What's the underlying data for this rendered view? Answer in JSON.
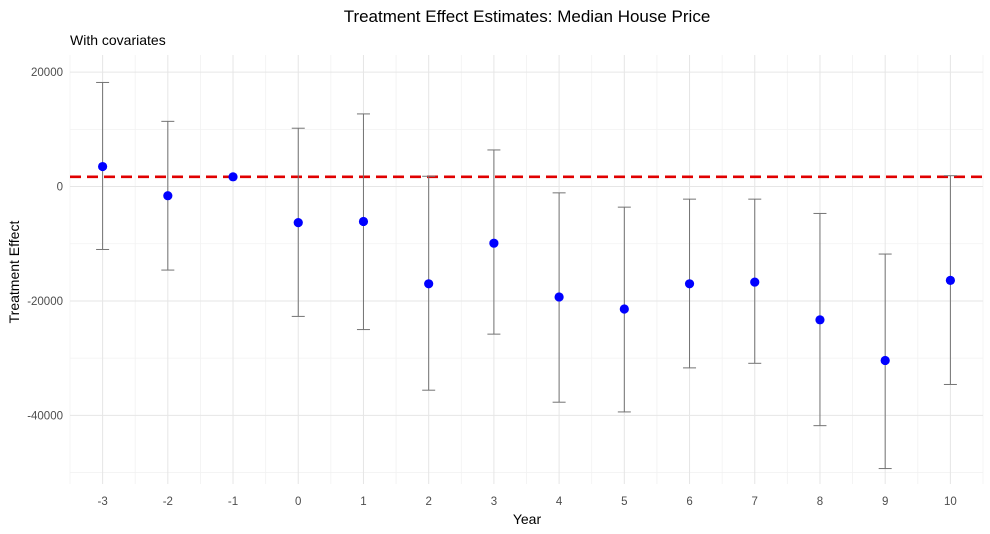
{
  "chart_data": {
    "type": "scatter",
    "title": "Treatment Effect Estimates: Median House Price",
    "subtitle": "With covariates",
    "xlabel": "Year",
    "ylabel": "Treatment Effect",
    "x": [
      -3,
      -2,
      -1,
      0,
      1,
      2,
      3,
      4,
      5,
      6,
      7,
      8,
      9,
      10
    ],
    "estimate": [
      3500,
      -1600,
      1700,
      -6300,
      -6100,
      -17000,
      -9900,
      -19300,
      -21400,
      -17000,
      -16700,
      -23300,
      -30400,
      -16400
    ],
    "ci_lower": [
      -11000,
      -14600,
      1700,
      -22700,
      -25000,
      -35600,
      -25800,
      -37700,
      -39400,
      -31700,
      -30900,
      -41800,
      -49300,
      -34600
    ],
    "ci_upper": [
      18200,
      11400,
      1700,
      10200,
      12700,
      1800,
      6400,
      -1100,
      -3600,
      -2200,
      -2200,
      -4700,
      -11800,
      1900
    ],
    "reference_line": 1700,
    "reference_line_color": "#e00000",
    "point_color": "#0000ff",
    "errorbar_color": "#737373",
    "ylim": [
      -52000,
      23000
    ],
    "xlim": [
      -3.5,
      10.5
    ],
    "y_ticks": [
      20000,
      0,
      -20000,
      -40000
    ],
    "y_tick_labels": [
      "20000",
      "0",
      "-20000",
      "-40000"
    ],
    "x_ticks": [
      -3,
      -2,
      -1,
      0,
      1,
      2,
      3,
      4,
      5,
      6,
      7,
      8,
      9,
      10
    ],
    "x_tick_labels": [
      "-3",
      "-2",
      "-1",
      "0",
      "1",
      "2",
      "3",
      "4",
      "5",
      "6",
      "7",
      "8",
      "9",
      "10"
    ],
    "grid": true
  }
}
